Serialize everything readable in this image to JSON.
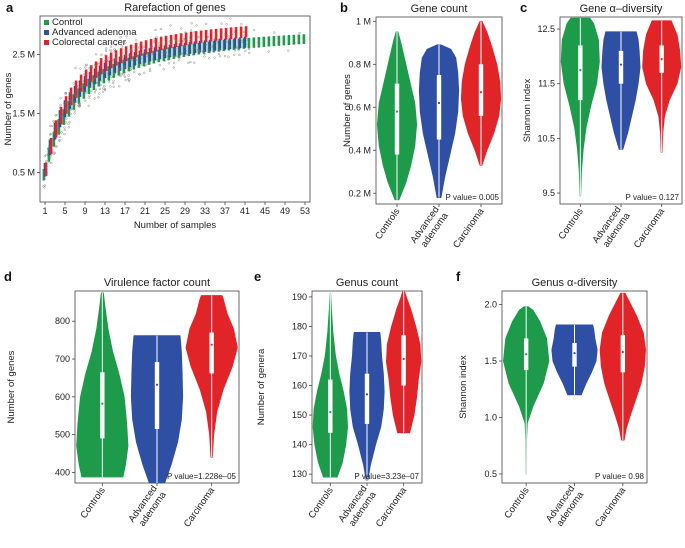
{
  "colors": {
    "control": "#1e9a4b",
    "adenoma": "#2e4fa3",
    "carcinoma": "#e02428",
    "grid": "#c9c9c9"
  },
  "chart_data": [
    {
      "id": "a",
      "panel_letter": "a",
      "type": "scatter",
      "title": "Rarefaction of genes",
      "xlabel": "Number of samples",
      "ylabel": "Number of genes",
      "xlim": [
        0,
        54
      ],
      "ylim": [
        0.0,
        3.15
      ],
      "x_ticks": [
        1,
        5,
        9,
        13,
        17,
        21,
        25,
        29,
        33,
        37,
        41,
        45,
        49,
        53
      ],
      "x_tick_labels": [
        "1",
        "5",
        "9",
        "13",
        "17",
        "21",
        "25",
        "29",
        "33",
        "37",
        "41",
        "45",
        "49",
        "53"
      ],
      "y_ticks": [
        0.5,
        1.5,
        2.5
      ],
      "y_tick_labels": [
        "0.5 M",
        "1.5 M",
        "2.5 M"
      ],
      "legend": [
        "Control",
        "Advanced adenoma",
        "Colorectal cancer"
      ],
      "legend_position": "top-left",
      "series": [
        {
          "name": "Control",
          "asymptote": 3.05,
          "half_saturation": 5.6,
          "max_samples": 53
        },
        {
          "name": "Advanced adenoma",
          "asymptote": 3.0,
          "half_saturation": 4.5,
          "max_samples": 41
        },
        {
          "name": "Colorectal cancer",
          "asymptote": 3.22,
          "half_saturation": 4.8,
          "max_samples": 41
        }
      ]
    },
    {
      "id": "b",
      "panel_letter": "b",
      "type": "violin",
      "title": "Gene count",
      "ylabel": "Number of genes",
      "ylim": [
        0.15,
        1.02
      ],
      "y_ticks": [
        0.2,
        0.4,
        0.6,
        0.8,
        1.0
      ],
      "y_tick_labels": [
        "0.2 M",
        "0.4 M",
        "0.6 M",
        "0.8 M",
        "1 M"
      ],
      "categories": [
        "Controls",
        "Advanced adenoma",
        "Carcinoma"
      ],
      "pvalue_label": "P value= 0.005",
      "violins": [
        {
          "min": 0.17,
          "max": 0.95,
          "q1": 0.38,
          "median": 0.58,
          "q3": 0.71,
          "profile": [
            [
              0.17,
              0.1
            ],
            [
              0.25,
              0.45
            ],
            [
              0.33,
              0.7
            ],
            [
              0.42,
              0.9
            ],
            [
              0.52,
              1.0
            ],
            [
              0.62,
              0.9
            ],
            [
              0.72,
              0.65
            ],
            [
              0.82,
              0.4
            ],
            [
              0.9,
              0.2
            ],
            [
              0.95,
              0.05
            ]
          ]
        },
        {
          "min": 0.18,
          "max": 0.89,
          "q1": 0.45,
          "median": 0.62,
          "q3": 0.75,
          "profile": [
            [
              0.18,
              0.1
            ],
            [
              0.28,
              0.3
            ],
            [
              0.38,
              0.55
            ],
            [
              0.48,
              0.8
            ],
            [
              0.58,
              0.95
            ],
            [
              0.68,
              1.0
            ],
            [
              0.76,
              0.95
            ],
            [
              0.83,
              0.85
            ],
            [
              0.87,
              0.6
            ],
            [
              0.89,
              0.1
            ]
          ]
        },
        {
          "min": 0.33,
          "max": 1.0,
          "q1": 0.56,
          "median": 0.67,
          "q3": 0.8,
          "profile": [
            [
              0.33,
              0.05
            ],
            [
              0.4,
              0.3
            ],
            [
              0.48,
              0.65
            ],
            [
              0.56,
              0.9
            ],
            [
              0.64,
              1.0
            ],
            [
              0.72,
              0.95
            ],
            [
              0.8,
              0.8
            ],
            [
              0.88,
              0.55
            ],
            [
              0.95,
              0.3
            ],
            [
              1.0,
              0.05
            ]
          ]
        }
      ]
    },
    {
      "id": "c",
      "panel_letter": "c",
      "type": "violin",
      "title": "Gene α–diversity",
      "ylabel": "Shannon index",
      "ylim": [
        9.3,
        12.72
      ],
      "y_ticks": [
        9.5,
        10.5,
        11.5,
        12.5
      ],
      "y_tick_labels": [
        "9.5",
        "10.5",
        "11.5",
        "12.5"
      ],
      "categories": [
        "Controls",
        "Advanced adenoma",
        "Carcinoma"
      ],
      "pvalue_label": "P value= 0.127",
      "violins": [
        {
          "min": 9.45,
          "max": 12.7,
          "q1": 11.2,
          "median": 11.75,
          "q3": 12.2,
          "profile": [
            [
              9.45,
              0.02
            ],
            [
              9.9,
              0.06
            ],
            [
              10.3,
              0.15
            ],
            [
              10.7,
              0.3
            ],
            [
              11.1,
              0.55
            ],
            [
              11.5,
              0.85
            ],
            [
              11.9,
              1.0
            ],
            [
              12.3,
              0.95
            ],
            [
              12.6,
              0.7
            ],
            [
              12.7,
              0.5
            ]
          ]
        },
        {
          "min": 10.3,
          "max": 12.45,
          "q1": 11.5,
          "median": 11.85,
          "q3": 12.1,
          "profile": [
            [
              10.3,
              0.1
            ],
            [
              10.6,
              0.35
            ],
            [
              10.9,
              0.55
            ],
            [
              11.2,
              0.75
            ],
            [
              11.5,
              0.9
            ],
            [
              11.8,
              1.0
            ],
            [
              12.1,
              0.95
            ],
            [
              12.3,
              0.9
            ],
            [
              12.45,
              0.8
            ]
          ]
        },
        {
          "min": 10.25,
          "max": 12.65,
          "q1": 11.7,
          "median": 11.95,
          "q3": 12.2,
          "profile": [
            [
              10.25,
              0.03
            ],
            [
              10.6,
              0.06
            ],
            [
              10.9,
              0.15
            ],
            [
              11.2,
              0.4
            ],
            [
              11.5,
              0.8
            ],
            [
              11.8,
              1.0
            ],
            [
              12.1,
              0.95
            ],
            [
              12.4,
              0.8
            ],
            [
              12.65,
              0.5
            ]
          ]
        }
      ]
    },
    {
      "id": "d",
      "panel_letter": "d",
      "type": "violin",
      "title": "Virulence factor count",
      "ylabel": "Number of genes",
      "ylim": [
        372,
        880
      ],
      "y_ticks": [
        400,
        500,
        600,
        700,
        800
      ],
      "y_tick_labels": [
        "400",
        "500",
        "600",
        "700",
        "800"
      ],
      "categories": [
        "Controls",
        "Advanced adenoma",
        "Carcinoma"
      ],
      "pvalue_label": "P value=1.228e–05",
      "violins": [
        {
          "min": 388,
          "max": 875,
          "q1": 490,
          "median": 582,
          "q3": 665,
          "profile": [
            [
              388,
              0.8
            ],
            [
              420,
              0.9
            ],
            [
              470,
              1.0
            ],
            [
              530,
              0.95
            ],
            [
              600,
              0.85
            ],
            [
              660,
              0.65
            ],
            [
              720,
              0.4
            ],
            [
              780,
              0.22
            ],
            [
              840,
              0.1
            ],
            [
              875,
              0.04
            ]
          ]
        },
        {
          "min": 372,
          "max": 762,
          "q1": 515,
          "median": 632,
          "q3": 692,
          "profile": [
            [
              372,
              0.3
            ],
            [
              420,
              0.55
            ],
            [
              480,
              0.8
            ],
            [
              540,
              0.95
            ],
            [
              600,
              1.0
            ],
            [
              660,
              0.98
            ],
            [
              720,
              0.95
            ],
            [
              762,
              0.9
            ]
          ]
        },
        {
          "min": 440,
          "max": 868,
          "q1": 662,
          "median": 738,
          "q3": 770,
          "profile": [
            [
              440,
              0.03
            ],
            [
              500,
              0.08
            ],
            [
              560,
              0.2
            ],
            [
              620,
              0.45
            ],
            [
              680,
              0.8
            ],
            [
              730,
              1.0
            ],
            [
              780,
              0.85
            ],
            [
              820,
              0.6
            ],
            [
              860,
              0.45
            ],
            [
              868,
              0.4
            ]
          ]
        }
      ]
    },
    {
      "id": "e",
      "panel_letter": "e",
      "type": "violin",
      "title": "Genus count",
      "ylabel": "Number of genera",
      "ylim": [
        127,
        192
      ],
      "y_ticks": [
        130,
        140,
        150,
        160,
        170,
        180,
        190
      ],
      "y_tick_labels": [
        "130",
        "140",
        "150",
        "160",
        "170",
        "180",
        "190"
      ],
      "categories": [
        "Controls",
        "Advanced adenoma",
        "Carcinoma"
      ],
      "pvalue_label": "P value=3.23e–07",
      "violins": [
        {
          "min": 129,
          "max": 191,
          "q1": 144,
          "median": 151,
          "q3": 162,
          "profile": [
            [
              129,
              0.4
            ],
            [
              134,
              0.7
            ],
            [
              140,
              0.9
            ],
            [
              146,
              1.0
            ],
            [
              152,
              0.95
            ],
            [
              158,
              0.75
            ],
            [
              164,
              0.5
            ],
            [
              170,
              0.3
            ],
            [
              178,
              0.15
            ],
            [
              186,
              0.06
            ],
            [
              191,
              0.02
            ]
          ]
        },
        {
          "min": 128,
          "max": 178,
          "q1": 147,
          "median": 157,
          "q3": 164,
          "profile": [
            [
              128,
              0.05
            ],
            [
              133,
              0.2
            ],
            [
              140,
              0.5
            ],
            [
              146,
              0.8
            ],
            [
              152,
              0.95
            ],
            [
              158,
              1.0
            ],
            [
              164,
              0.95
            ],
            [
              170,
              0.85
            ],
            [
              175,
              0.8
            ],
            [
              178,
              0.75
            ]
          ]
        },
        {
          "min": 144,
          "max": 192,
          "q1": 160,
          "median": 169,
          "q3": 177,
          "profile": [
            [
              144,
              0.35
            ],
            [
              150,
              0.6
            ],
            [
              156,
              0.75
            ],
            [
              162,
              0.85
            ],
            [
              168,
              1.0
            ],
            [
              174,
              0.95
            ],
            [
              180,
              0.7
            ],
            [
              186,
              0.4
            ],
            [
              190,
              0.15
            ],
            [
              192,
              0.05
            ]
          ]
        }
      ]
    },
    {
      "id": "f",
      "panel_letter": "f",
      "type": "violin",
      "title": "Genus α-diversity",
      "ylabel": "Shannon index",
      "ylim": [
        0.42,
        2.12
      ],
      "y_ticks": [
        0.5,
        1.0,
        1.5,
        2.0
      ],
      "y_tick_labels": [
        "0.5",
        "1.0",
        "1.5",
        "2.0"
      ],
      "categories": [
        "Controls",
        "Advanced adenoma",
        "Carcinoma"
      ],
      "pvalue_label": "P value= 0.98",
      "violins": [
        {
          "min": 0.5,
          "max": 1.98,
          "q1": 1.42,
          "median": 1.56,
          "q3": 1.7,
          "profile": [
            [
              0.5,
              0.01
            ],
            [
              0.8,
              0.02
            ],
            [
              0.95,
              0.05
            ],
            [
              1.1,
              0.3
            ],
            [
              1.3,
              0.75
            ],
            [
              1.5,
              1.0
            ],
            [
              1.7,
              0.9
            ],
            [
              1.85,
              0.6
            ],
            [
              1.95,
              0.3
            ],
            [
              1.98,
              0.1
            ]
          ]
        },
        {
          "min": 1.2,
          "max": 1.82,
          "q1": 1.45,
          "median": 1.57,
          "q3": 1.66,
          "profile": [
            [
              1.2,
              0.3
            ],
            [
              1.3,
              0.5
            ],
            [
              1.4,
              0.75
            ],
            [
              1.5,
              0.95
            ],
            [
              1.6,
              1.0
            ],
            [
              1.7,
              0.9
            ],
            [
              1.78,
              0.85
            ],
            [
              1.82,
              0.8
            ]
          ]
        },
        {
          "min": 0.8,
          "max": 2.1,
          "q1": 1.4,
          "median": 1.58,
          "q3": 1.73,
          "profile": [
            [
              0.8,
              0.06
            ],
            [
              0.9,
              0.15
            ],
            [
              1.0,
              0.3
            ],
            [
              1.15,
              0.55
            ],
            [
              1.3,
              0.8
            ],
            [
              1.45,
              0.95
            ],
            [
              1.6,
              1.0
            ],
            [
              1.75,
              0.9
            ],
            [
              1.9,
              0.6
            ],
            [
              2.0,
              0.35
            ],
            [
              2.1,
              0.1
            ]
          ]
        }
      ]
    }
  ]
}
